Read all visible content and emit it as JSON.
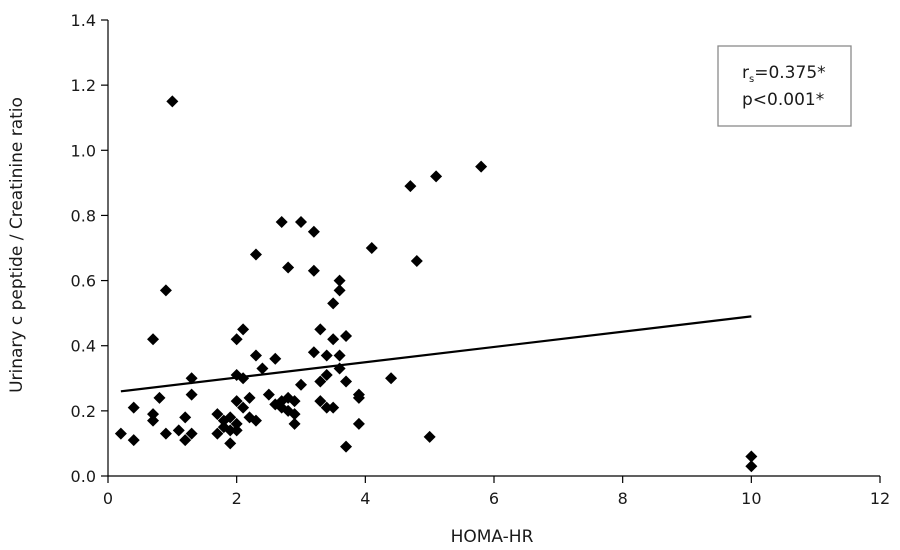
{
  "chart_data": {
    "type": "scatter",
    "title": "",
    "xlabel": "HOMA-HR",
    "ylabel": "Urinary c peptide / Creatinine ratio",
    "xlim": [
      0,
      12
    ],
    "ylim": [
      0,
      1.4
    ],
    "x_ticks": [
      "0",
      "2",
      "4",
      "6",
      "8",
      "10",
      "12"
    ],
    "y_ticks": [
      "0.0",
      "0.2",
      "0.4",
      "0.6",
      "0.8",
      "1.0",
      "1.2",
      "1.4"
    ],
    "grid": false,
    "marker": "diamond",
    "marker_color": "#000000",
    "annotation": {
      "r_main": "r",
      "r_sub": "s",
      "r_value": "=0.375*",
      "p_text": "p<0.001*"
    },
    "trendline": {
      "x": [
        0.2,
        10
      ],
      "y": [
        0.26,
        0.49
      ]
    },
    "points": [
      {
        "x": 0.2,
        "y": 0.13
      },
      {
        "x": 0.4,
        "y": 0.21
      },
      {
        "x": 0.4,
        "y": 0.11
      },
      {
        "x": 0.7,
        "y": 0.42
      },
      {
        "x": 0.7,
        "y": 0.19
      },
      {
        "x": 0.7,
        "y": 0.17
      },
      {
        "x": 0.8,
        "y": 0.24
      },
      {
        "x": 0.9,
        "y": 0.57
      },
      {
        "x": 0.9,
        "y": 0.13
      },
      {
        "x": 1.0,
        "y": 1.15
      },
      {
        "x": 1.1,
        "y": 0.14
      },
      {
        "x": 1.2,
        "y": 0.11
      },
      {
        "x": 1.2,
        "y": 0.18
      },
      {
        "x": 1.3,
        "y": 0.3
      },
      {
        "x": 1.3,
        "y": 0.25
      },
      {
        "x": 1.3,
        "y": 0.13
      },
      {
        "x": 1.7,
        "y": 0.19
      },
      {
        "x": 1.7,
        "y": 0.13
      },
      {
        "x": 1.8,
        "y": 0.17
      },
      {
        "x": 1.8,
        "y": 0.15
      },
      {
        "x": 1.9,
        "y": 0.18
      },
      {
        "x": 1.9,
        "y": 0.1
      },
      {
        "x": 1.9,
        "y": 0.14
      },
      {
        "x": 2.0,
        "y": 0.42
      },
      {
        "x": 2.0,
        "y": 0.31
      },
      {
        "x": 2.0,
        "y": 0.23
      },
      {
        "x": 2.0,
        "y": 0.16
      },
      {
        "x": 2.0,
        "y": 0.14
      },
      {
        "x": 2.1,
        "y": 0.45
      },
      {
        "x": 2.1,
        "y": 0.3
      },
      {
        "x": 2.1,
        "y": 0.21
      },
      {
        "x": 2.2,
        "y": 0.18
      },
      {
        "x": 2.2,
        "y": 0.24
      },
      {
        "x": 2.3,
        "y": 0.68
      },
      {
        "x": 2.3,
        "y": 0.37
      },
      {
        "x": 2.3,
        "y": 0.17
      },
      {
        "x": 2.4,
        "y": 0.33
      },
      {
        "x": 2.5,
        "y": 0.25
      },
      {
        "x": 2.6,
        "y": 0.36
      },
      {
        "x": 2.6,
        "y": 0.22
      },
      {
        "x": 2.7,
        "y": 0.78
      },
      {
        "x": 2.7,
        "y": 0.23
      },
      {
        "x": 2.7,
        "y": 0.21
      },
      {
        "x": 2.8,
        "y": 0.64
      },
      {
        "x": 2.8,
        "y": 0.24
      },
      {
        "x": 2.8,
        "y": 0.2
      },
      {
        "x": 2.9,
        "y": 0.19
      },
      {
        "x": 2.9,
        "y": 0.16
      },
      {
        "x": 2.9,
        "y": 0.23
      },
      {
        "x": 3.0,
        "y": 0.78
      },
      {
        "x": 3.0,
        "y": 0.28
      },
      {
        "x": 3.2,
        "y": 0.75
      },
      {
        "x": 3.2,
        "y": 0.63
      },
      {
        "x": 3.2,
        "y": 0.38
      },
      {
        "x": 3.3,
        "y": 0.45
      },
      {
        "x": 3.3,
        "y": 0.29
      },
      {
        "x": 3.3,
        "y": 0.23
      },
      {
        "x": 3.4,
        "y": 0.37
      },
      {
        "x": 3.4,
        "y": 0.31
      },
      {
        "x": 3.4,
        "y": 0.21
      },
      {
        "x": 3.5,
        "y": 0.53
      },
      {
        "x": 3.5,
        "y": 0.42
      },
      {
        "x": 3.5,
        "y": 0.21
      },
      {
        "x": 3.6,
        "y": 0.6
      },
      {
        "x": 3.6,
        "y": 0.57
      },
      {
        "x": 3.6,
        "y": 0.37
      },
      {
        "x": 3.6,
        "y": 0.33
      },
      {
        "x": 3.7,
        "y": 0.43
      },
      {
        "x": 3.7,
        "y": 0.29
      },
      {
        "x": 3.7,
        "y": 0.09
      },
      {
        "x": 3.9,
        "y": 0.25
      },
      {
        "x": 3.9,
        "y": 0.24
      },
      {
        "x": 3.9,
        "y": 0.16
      },
      {
        "x": 4.1,
        "y": 0.7
      },
      {
        "x": 4.4,
        "y": 0.3
      },
      {
        "x": 4.7,
        "y": 0.89
      },
      {
        "x": 4.8,
        "y": 0.66
      },
      {
        "x": 5.0,
        "y": 0.12
      },
      {
        "x": 5.1,
        "y": 0.92
      },
      {
        "x": 5.8,
        "y": 0.95
      },
      {
        "x": 10.0,
        "y": 0.06
      },
      {
        "x": 10.0,
        "y": 0.03
      }
    ]
  }
}
